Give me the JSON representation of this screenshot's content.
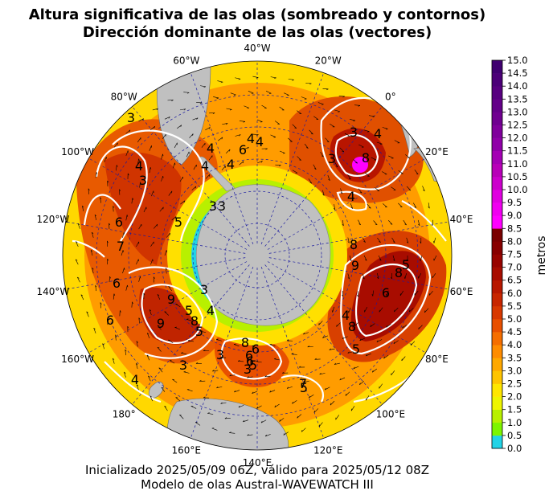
{
  "title_line1": "Altura significativa de las olas (sombreado y contornos)",
  "title_line2": "Dirección dominante de las olas (vectores)",
  "footer_line1": "Inicializado 2025/05/09 06Z, válido para 2025/05/12 08Z",
  "footer_line2": "Modelo de olas Austral-WAVEWATCH III",
  "colorbar": {
    "unit": "metros",
    "ticks": [
      "0.0",
      "0.5",
      "1.0",
      "1.5",
      "2.0",
      "2.5",
      "3.0",
      "3.5",
      "4.0",
      "4.5",
      "5.0",
      "5.5",
      "6.0",
      "6.5",
      "7.0",
      "7.5",
      "8.0",
      "8.5",
      "9.0",
      "9.5",
      "10.0",
      "10.5",
      "11.0",
      "11.5",
      "12.0",
      "12.5",
      "13.0",
      "13.5",
      "14.0",
      "14.5",
      "15.0"
    ],
    "colors": [
      "#22d3e6",
      "#7df500",
      "#b8f000",
      "#eef500",
      "#ffe600",
      "#ffc400",
      "#ffa800",
      "#ff8c00",
      "#f56e00",
      "#e85000",
      "#d83800",
      "#c82600",
      "#b81800",
      "#a80c00",
      "#980400",
      "#880000",
      "#7a0000",
      "#ff00ff",
      "#f000f0",
      "#e000e0",
      "#cc00cc",
      "#b800b8",
      "#a400b4",
      "#9000a8",
      "#80009c",
      "#700090",
      "#640088",
      "#580080",
      "#4c0078",
      "#400070"
    ]
  },
  "lon_labels": [
    {
      "text": "40°W",
      "lon": -40
    },
    {
      "text": "20°W",
      "lon": -20
    },
    {
      "text": "0°",
      "lon": 0
    },
    {
      "text": "20°E",
      "lon": 20
    },
    {
      "text": "40°E",
      "lon": 40
    },
    {
      "text": "60°E",
      "lon": 60
    },
    {
      "text": "80°E",
      "lon": 80
    },
    {
      "text": "100°E",
      "lon": 100
    },
    {
      "text": "120°E",
      "lon": 120
    },
    {
      "text": "140°E",
      "lon": 140
    },
    {
      "text": "160°E",
      "lon": 160
    },
    {
      "text": "180°",
      "lon": 180
    },
    {
      "text": "160°W",
      "lon": -160
    },
    {
      "text": "140°W",
      "lon": -140
    },
    {
      "text": "120°W",
      "lon": -120
    },
    {
      "text": "100°W",
      "lon": -100
    },
    {
      "text": "80°W",
      "lon": -80
    },
    {
      "text": "60°W",
      "lon": -60
    }
  ],
  "contour_labels": [
    "3",
    "4",
    "3",
    "6",
    "7",
    "6",
    "5",
    "4",
    "4",
    "4",
    "6",
    "4",
    "3",
    "3",
    "9",
    "9",
    "8",
    "5",
    "5",
    "4",
    "3",
    "3",
    "4",
    "6",
    "3",
    "8",
    "4",
    "3",
    "4",
    "5",
    "8",
    "6",
    "8",
    "5",
    "4",
    "5",
    "6",
    "3",
    "9",
    "8",
    "7",
    "6",
    "8",
    "5",
    "3",
    "6",
    "4"
  ]
}
